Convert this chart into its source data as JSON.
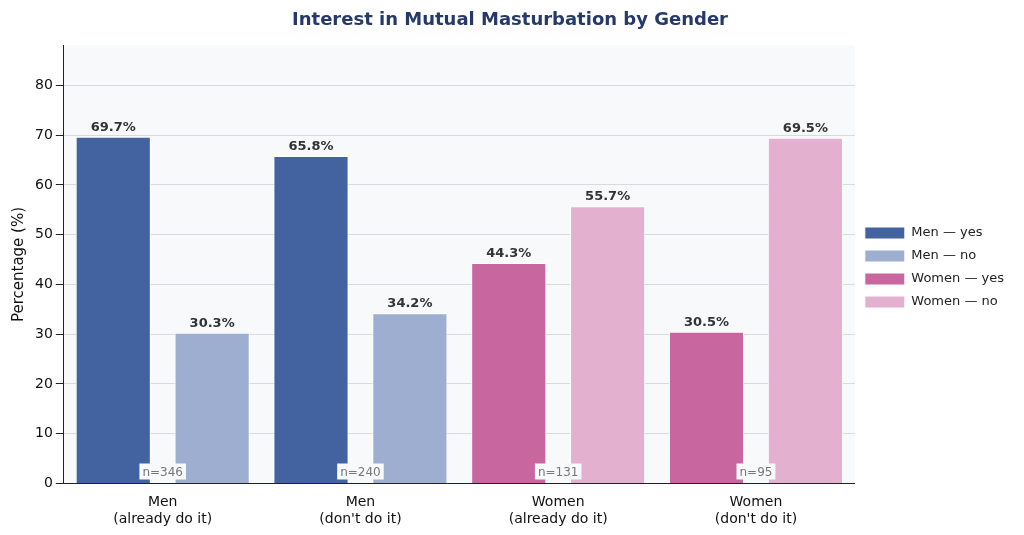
{
  "chart_data": {
    "type": "bar",
    "title": "Interest in Mutual Masturbation by Gender",
    "ylabel": "Percentage (%)",
    "categories": [
      "Men\n(already do it)",
      "Men\n(don't do it)",
      "Women\n(already do it)",
      "Women\n(don't do it)"
    ],
    "series": [
      {
        "name": "Men — yes",
        "color": "#4262a0",
        "values": [
          69.7,
          65.8,
          null,
          null
        ],
        "value_labels": [
          "69.7%",
          "65.8%",
          null,
          null
        ]
      },
      {
        "name": "Men — no",
        "color": "#9daed0",
        "values": [
          30.3,
          34.2,
          null,
          null
        ],
        "value_labels": [
          "30.3%",
          "34.2%",
          null,
          null
        ]
      },
      {
        "name": "Women — yes",
        "color": "#c8679f",
        "values": [
          null,
          null,
          44.3,
          30.5
        ],
        "value_labels": [
          null,
          null,
          "44.3%",
          "30.5%"
        ]
      },
      {
        "name": "Women — no",
        "color": "#e4b0d0",
        "values": [
          null,
          null,
          55.7,
          69.5
        ],
        "value_labels": [
          null,
          null,
          "55.7%",
          "69.5%"
        ]
      }
    ],
    "ylim": [
      0,
      88
    ],
    "yticks": [
      0,
      10,
      20,
      30,
      40,
      50,
      60,
      70,
      80
    ],
    "grid": "y",
    "legend": "right",
    "annotations": [
      "n=346",
      "n=240",
      "n=131",
      "n=95"
    ]
  }
}
